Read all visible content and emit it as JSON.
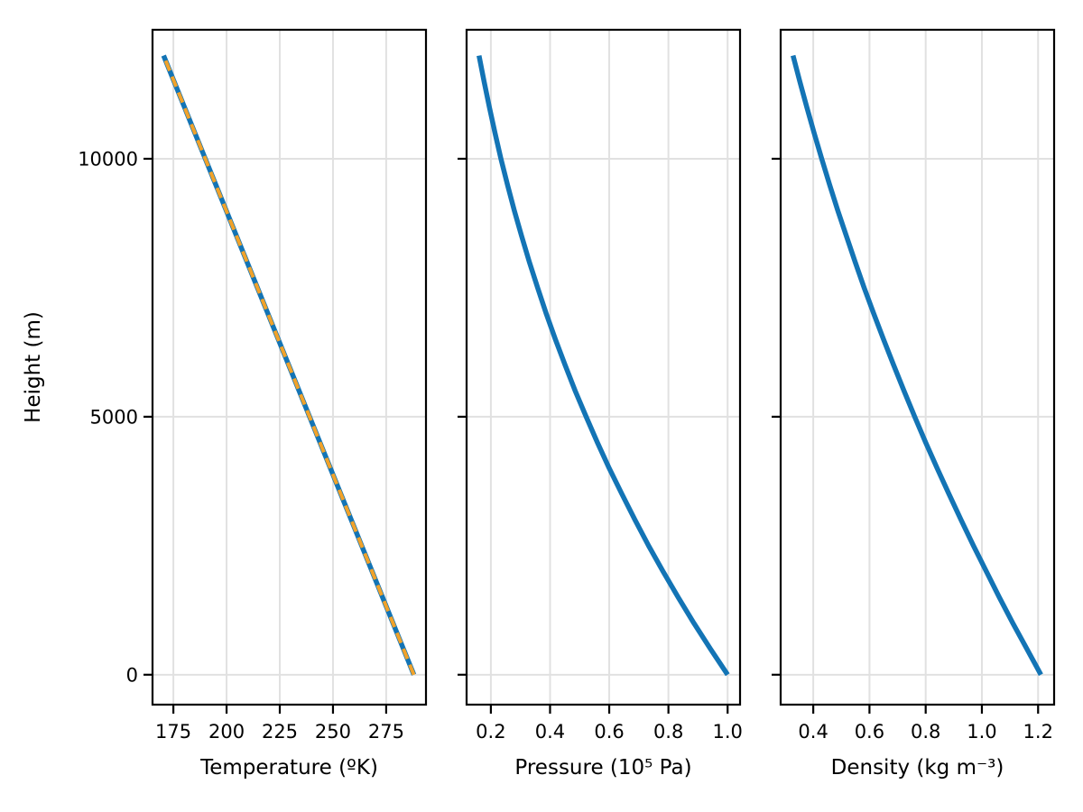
{
  "figure": {
    "background": "#ffffff",
    "colors": {
      "line_blue": "#1374b5",
      "line_orange": "#f1a22a",
      "grid": "#e1e1e1",
      "spine": "#000000",
      "text": "#000000"
    }
  },
  "chart_data": [
    {
      "id": "temperature",
      "type": "line",
      "xlabel": "Temperature (ºK)",
      "ylabel": "Height (m)",
      "xlim": [
        165.2,
        293.7
      ],
      "ylim": [
        -580,
        12500
      ],
      "xticks": [
        175,
        200,
        225,
        250,
        275
      ],
      "xtick_labels": [
        "175",
        "200",
        "225",
        "250",
        "275"
      ],
      "yticks": [
        0,
        5000,
        10000
      ],
      "ytick_labels": [
        "0",
        "5000",
        "10000"
      ],
      "show_ytick_labels": true,
      "grid": true,
      "legend": "none",
      "y": [
        0,
        500,
        1000,
        1500,
        2000,
        2500,
        3000,
        3500,
        4000,
        4500,
        5000,
        5500,
        6000,
        6500,
        7000,
        7500,
        8000,
        8500,
        9000,
        9500,
        10000,
        10500,
        11000,
        11500,
        12000
      ],
      "series": [
        {
          "name": "temperature-profile-solid",
          "color": "#1374b5",
          "style": "solid",
          "width": 5.5,
          "x": [
            288.0,
            283.1,
            278.2,
            273.3,
            268.4,
            263.5,
            258.6,
            253.7,
            248.8,
            243.9,
            239.0,
            234.1,
            229.2,
            224.3,
            219.4,
            214.5,
            209.6,
            204.7,
            199.8,
            194.9,
            190.0,
            185.1,
            180.2,
            175.3,
            170.4
          ]
        },
        {
          "name": "temperature-profile-dashed",
          "color": "#f1a22a",
          "style": "dashed",
          "width": 4,
          "x": [
            288.0,
            283.1,
            278.2,
            273.3,
            268.4,
            263.5,
            258.6,
            253.7,
            248.8,
            243.9,
            239.0,
            234.1,
            229.2,
            224.3,
            219.4,
            214.5,
            209.6,
            204.7,
            199.8,
            194.9,
            190.0,
            185.1,
            180.2,
            175.3,
            170.4
          ]
        }
      ]
    },
    {
      "id": "pressure",
      "type": "line",
      "xlabel": "Pressure (10⁵ Pa)",
      "ylabel": "",
      "xlim": [
        0.118,
        1.042
      ],
      "ylim": [
        -580,
        12500
      ],
      "xticks": [
        0.2,
        0.4,
        0.6,
        0.8,
        1.0
      ],
      "xtick_labels": [
        "0.2",
        "0.4",
        "0.6",
        "0.8",
        "1.0"
      ],
      "yticks": [
        0,
        5000,
        10000
      ],
      "ytick_labels": [
        "0",
        "5000",
        "10000"
      ],
      "show_ytick_labels": false,
      "grid": true,
      "legend": "none",
      "y": [
        0,
        500,
        1000,
        1500,
        2000,
        2500,
        3000,
        3500,
        4000,
        4500,
        5000,
        5500,
        6000,
        6500,
        7000,
        7500,
        8000,
        8500,
        9000,
        9500,
        10000,
        10500,
        11000,
        11500,
        12000
      ],
      "series": [
        {
          "name": "pressure-profile",
          "color": "#1374b5",
          "style": "solid",
          "width": 5.5,
          "x": [
            1.0,
            0.942,
            0.886,
            0.833,
            0.782,
            0.733,
            0.687,
            0.643,
            0.6,
            0.56,
            0.522,
            0.485,
            0.451,
            0.418,
            0.387,
            0.358,
            0.33,
            0.304,
            0.279,
            0.256,
            0.234,
            0.214,
            0.195,
            0.177,
            0.16
          ]
        }
      ]
    },
    {
      "id": "density",
      "type": "line",
      "xlabel": "Density (kg m⁻³)",
      "ylabel": "",
      "xlim": [
        0.284,
        1.257
      ],
      "ylim": [
        -580,
        12500
      ],
      "xticks": [
        0.4,
        0.6,
        0.8,
        1.0,
        1.2
      ],
      "xtick_labels": [
        "0.4",
        "0.6",
        "0.8",
        "1.0",
        "1.2"
      ],
      "yticks": [
        0,
        5000,
        10000
      ],
      "ytick_labels": [
        "0",
        "5000",
        "10000"
      ],
      "show_ytick_labels": false,
      "grid": true,
      "legend": "none",
      "y": [
        0,
        500,
        1000,
        1500,
        2000,
        2500,
        3000,
        3500,
        4000,
        4500,
        5000,
        5500,
        6000,
        6500,
        7000,
        7500,
        8000,
        8500,
        9000,
        9500,
        10000,
        10500,
        11000,
        11500,
        12000
      ],
      "series": [
        {
          "name": "density-profile",
          "color": "#1374b5",
          "style": "solid",
          "width": 5.5,
          "x": [
            1.21,
            1.16,
            1.11,
            1.062,
            1.016,
            0.97,
            0.926,
            0.883,
            0.841,
            0.8,
            0.761,
            0.723,
            0.686,
            0.65,
            0.615,
            0.581,
            0.549,
            0.518,
            0.487,
            0.458,
            0.43,
            0.403,
            0.377,
            0.352,
            0.328
          ]
        }
      ]
    }
  ]
}
